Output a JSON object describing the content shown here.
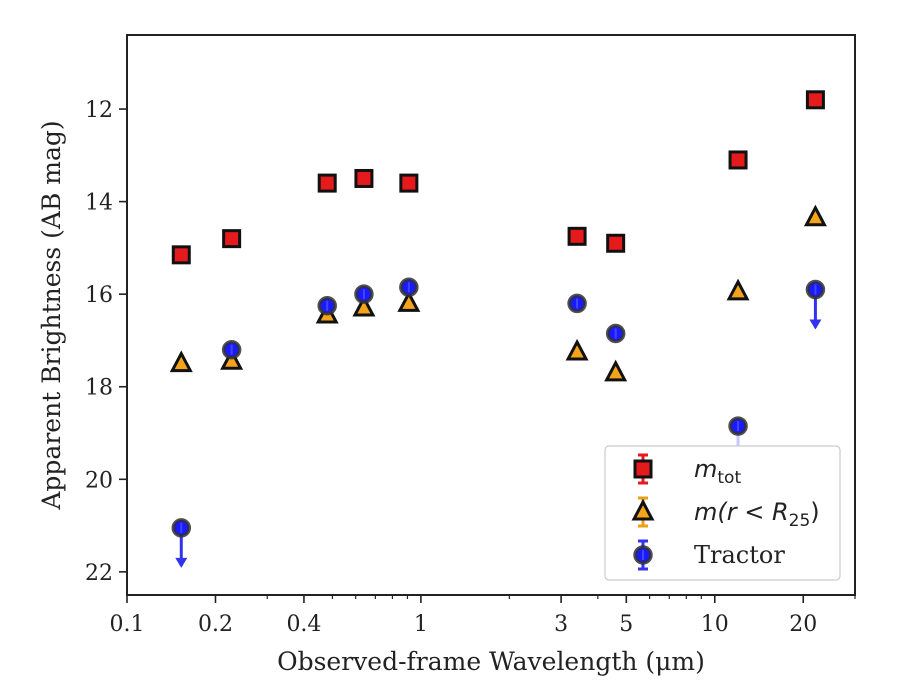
{
  "chart_data": {
    "type": "scatter",
    "title": "",
    "xlabel": "Observed-frame Wavelength (μm)",
    "ylabel": "Apparent Brightness (AB mag)",
    "xscale": "log",
    "xlim": [
      0.1,
      30
    ],
    "ylim": [
      22.5,
      10.4
    ],
    "y_inverted": true,
    "x_ticks": [
      {
        "value": 0.1,
        "label": "0.1"
      },
      {
        "value": 0.2,
        "label": "0.2"
      },
      {
        "value": 0.4,
        "label": "0.4"
      },
      {
        "value": 1,
        "label": "1"
      },
      {
        "value": 3,
        "label": "3"
      },
      {
        "value": 5,
        "label": "5"
      },
      {
        "value": 10,
        "label": "10"
      },
      {
        "value": 20,
        "label": "20"
      }
    ],
    "y_ticks": [
      {
        "value": 12,
        "label": "12"
      },
      {
        "value": 14,
        "label": "14"
      },
      {
        "value": 16,
        "label": "16"
      },
      {
        "value": 18,
        "label": "18"
      },
      {
        "value": 20,
        "label": "20"
      },
      {
        "value": 22,
        "label": "22"
      }
    ],
    "legend_position": "lower-right",
    "series": [
      {
        "key": "m_tot",
        "marker": "square",
        "color": "#e41a1c",
        "edge_color": "#111111",
        "points": [
          {
            "x": 0.153,
            "y": 15.15
          },
          {
            "x": 0.227,
            "y": 14.8
          },
          {
            "x": 0.48,
            "y": 13.6
          },
          {
            "x": 0.64,
            "y": 13.5
          },
          {
            "x": 0.91,
            "y": 13.6
          },
          {
            "x": 3.4,
            "y": 14.75
          },
          {
            "x": 4.6,
            "y": 14.9
          },
          {
            "x": 12.0,
            "y": 13.1
          },
          {
            "x": 22.0,
            "y": 11.8
          }
        ]
      },
      {
        "key": "m_r25",
        "marker": "triangle",
        "color": "#f5a31a",
        "edge_color": "#111111",
        "points": [
          {
            "x": 0.153,
            "y": 17.5
          },
          {
            "x": 0.227,
            "y": 17.45
          },
          {
            "x": 0.48,
            "y": 16.45
          },
          {
            "x": 0.64,
            "y": 16.3
          },
          {
            "x": 0.91,
            "y": 16.2
          },
          {
            "x": 3.4,
            "y": 17.25
          },
          {
            "x": 4.6,
            "y": 17.7
          },
          {
            "x": 12.0,
            "y": 15.95
          },
          {
            "x": 22.0,
            "y": 14.35
          }
        ]
      },
      {
        "key": "tractor",
        "marker": "circle",
        "color": "#1a1aff",
        "edge_color": "#333333",
        "points": [
          {
            "x": 0.153,
            "y": 21.05,
            "upper_limit": true
          },
          {
            "x": 0.227,
            "y": 17.2
          },
          {
            "x": 0.48,
            "y": 16.25
          },
          {
            "x": 0.64,
            "y": 16.0
          },
          {
            "x": 0.91,
            "y": 15.85
          },
          {
            "x": 3.4,
            "y": 16.2
          },
          {
            "x": 4.6,
            "y": 16.85
          },
          {
            "x": 12.0,
            "y": 18.85,
            "upper_limit": true
          },
          {
            "x": 22.0,
            "y": 15.9,
            "upper_limit": true
          }
        ]
      }
    ],
    "legend": [
      {
        "series": "m_tot",
        "label_main": "m",
        "label_sub": "tot"
      },
      {
        "series": "m_r25",
        "label_main": "m(r < R",
        "label_sub": "25",
        "label_tail": ")"
      },
      {
        "series": "tractor",
        "label_main": "Tractor",
        "label_sub": ""
      }
    ]
  }
}
